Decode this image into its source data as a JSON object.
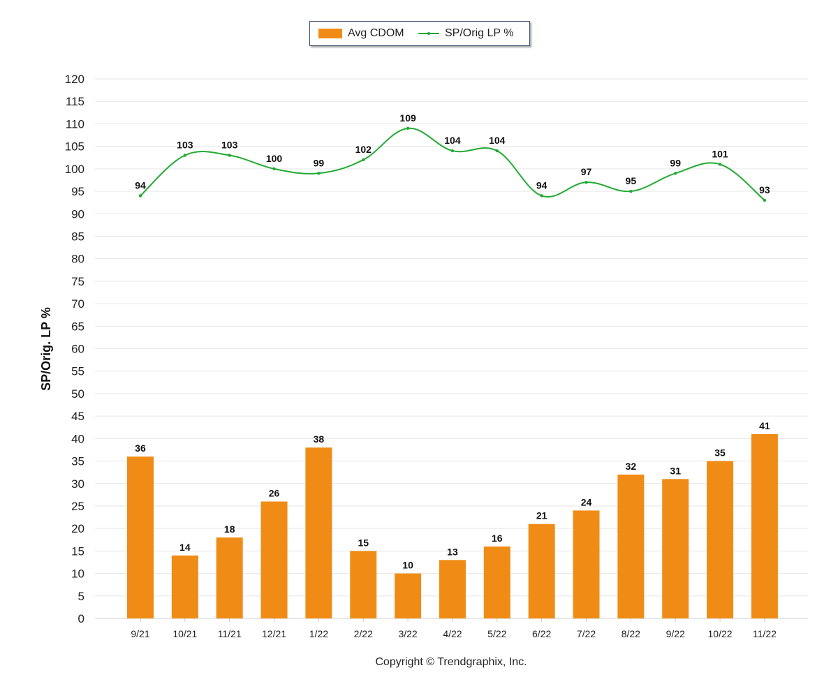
{
  "chart_data": {
    "type": "bar",
    "categories": [
      "9/21",
      "10/21",
      "11/21",
      "12/21",
      "1/22",
      "2/22",
      "3/22",
      "4/22",
      "5/22",
      "6/22",
      "7/22",
      "8/22",
      "9/22",
      "10/22",
      "11/22"
    ],
    "series": [
      {
        "name": "Avg CDOM",
        "type": "bar",
        "values": [
          36,
          14,
          18,
          26,
          38,
          15,
          10,
          13,
          16,
          21,
          24,
          32,
          31,
          35,
          41
        ]
      },
      {
        "name": "SP/Orig LP %",
        "type": "line",
        "values": [
          94,
          103,
          103,
          100,
          99,
          102,
          109,
          104,
          104,
          94,
          97,
          95,
          99,
          101,
          93
        ]
      }
    ],
    "ylabel": "SP/Orig. LP %",
    "ylim": [
      0,
      120
    ],
    "yticks": [
      0,
      5,
      10,
      15,
      20,
      25,
      30,
      35,
      40,
      45,
      50,
      55,
      60,
      65,
      70,
      75,
      80,
      85,
      90,
      95,
      100,
      105,
      110,
      115,
      120
    ],
    "grid": true,
    "legend_position": "top-center",
    "colors": {
      "bar": "#f08c15",
      "line": "#22aa33",
      "grid": "#e6e6e6",
      "axis_text": "#222222"
    }
  },
  "legend": {
    "bar_label": "Avg CDOM",
    "line_label": "SP/Orig LP %"
  },
  "footer": {
    "copyright": "Copyright © Trendgraphix, Inc."
  }
}
